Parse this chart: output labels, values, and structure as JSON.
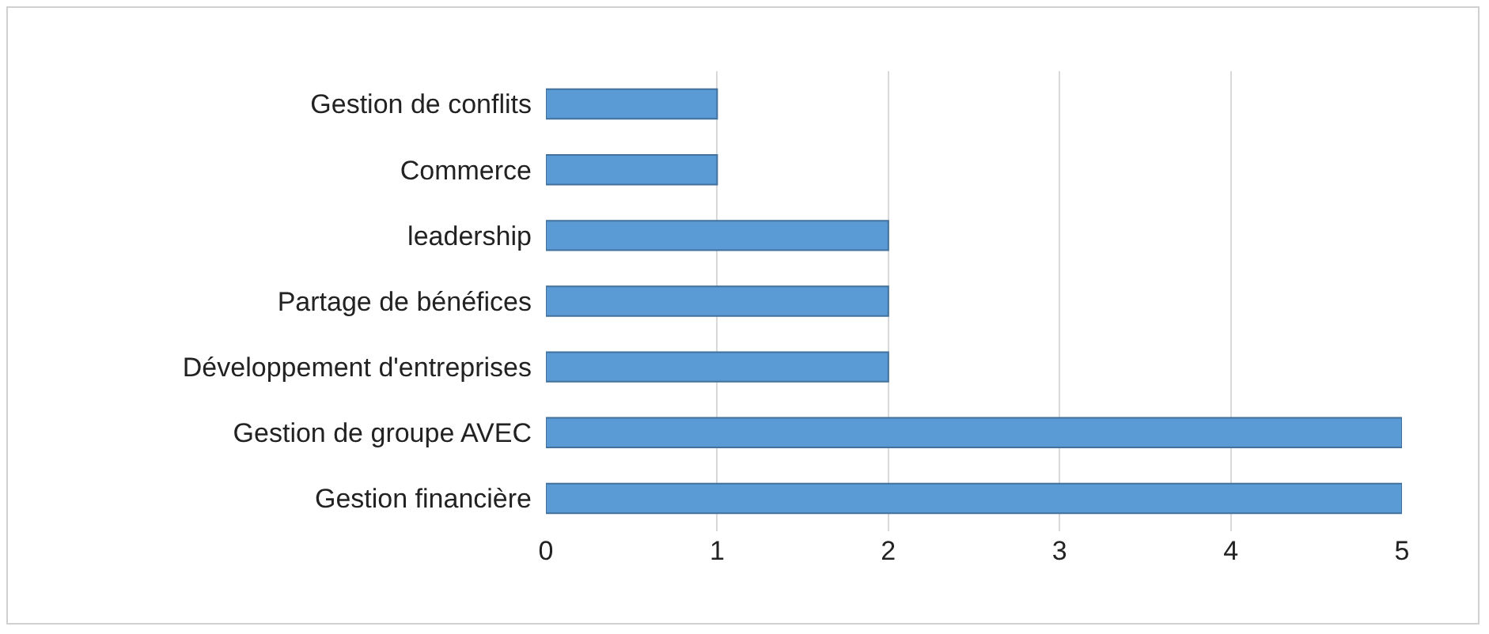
{
  "chart_data": {
    "type": "bar",
    "orientation": "horizontal",
    "categories": [
      "Gestion de conflits",
      "Commerce",
      "leadership",
      "Partage de bénéfices",
      "Développement d'entreprises",
      "Gestion de groupe AVEC",
      "Gestion financière"
    ],
    "values": [
      1,
      1,
      2,
      2,
      2,
      5,
      5
    ],
    "color": "#5b9bd5",
    "xlim": [
      0,
      5
    ],
    "xticks": [
      0,
      1,
      2,
      3,
      4,
      5
    ],
    "grid": "x"
  }
}
